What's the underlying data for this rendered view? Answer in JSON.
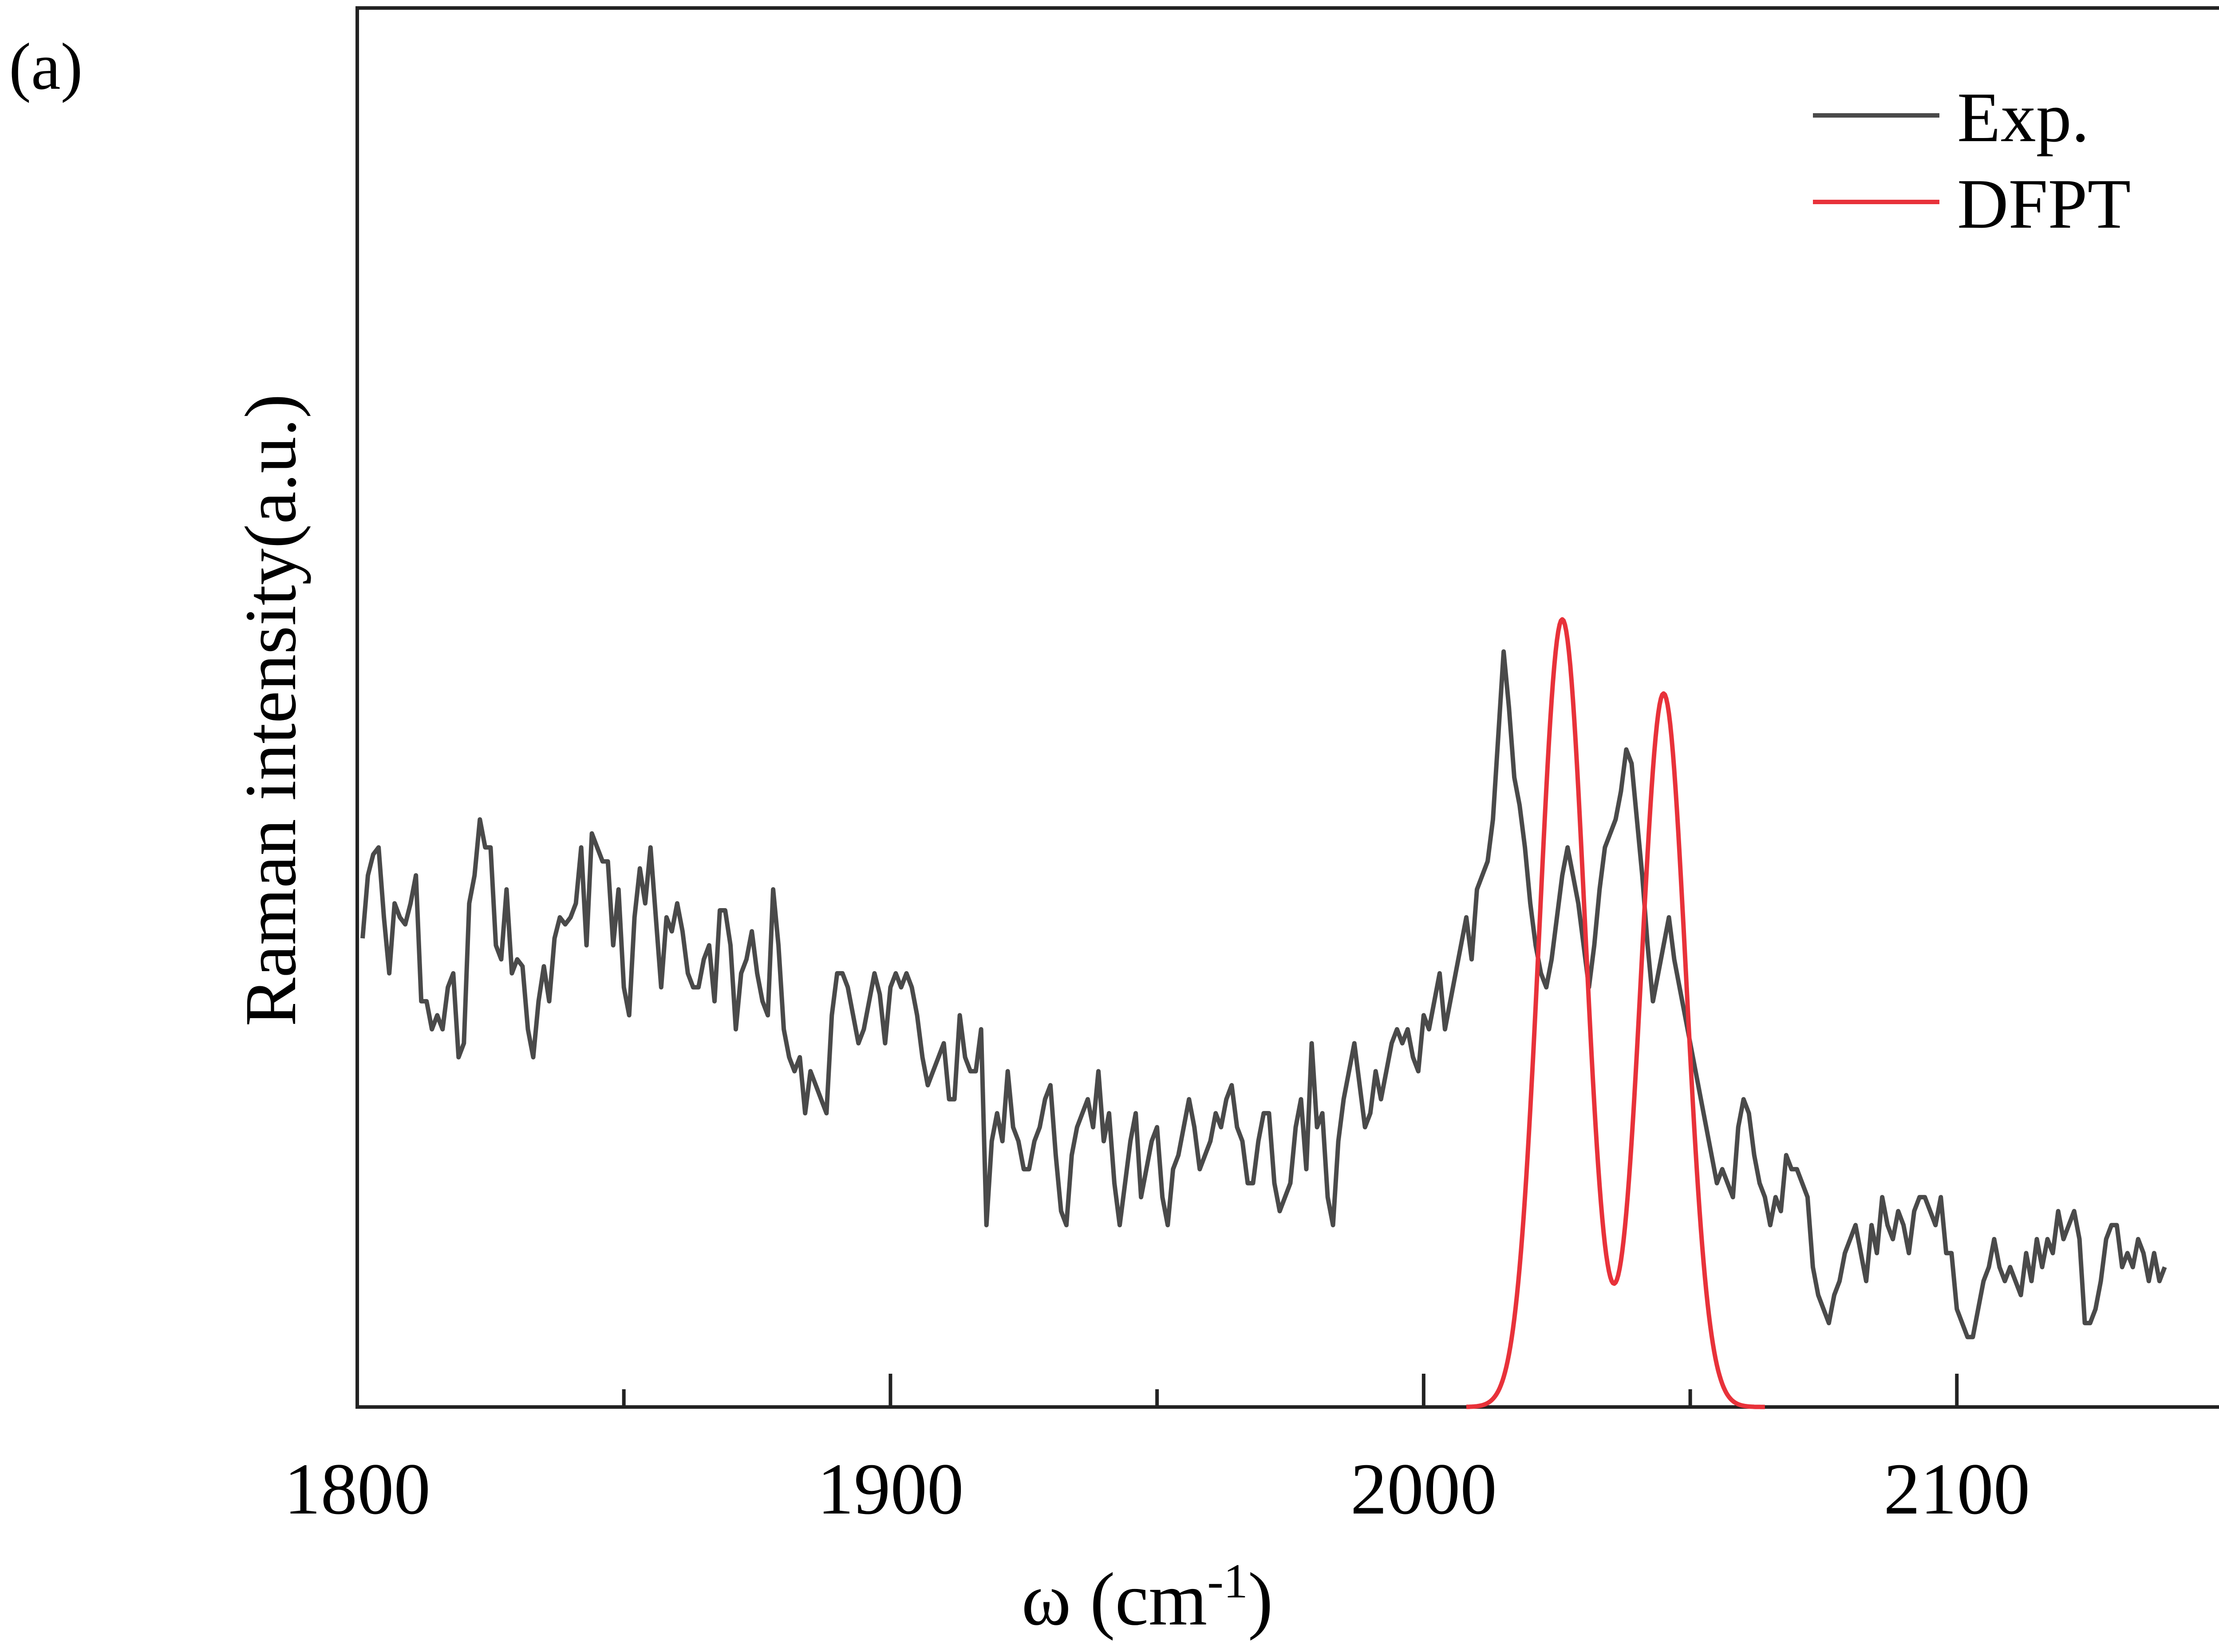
{
  "panel_label": "(a)",
  "chart_data": {
    "type": "line",
    "title": "",
    "xlabel": "ω (cm",
    "xlabel_sup": "-1",
    "xlabel_close": ")",
    "ylabel": "Raman intensity(a.u.)",
    "xlim": [
      1800,
      2150
    ],
    "ylim": [
      0,
      1
    ],
    "x_ticks": [
      1800,
      1900,
      2000,
      2100
    ],
    "x_minor_ticks": [
      1850,
      1950,
      2050
    ],
    "grid": false,
    "legend_position": "top-right",
    "series": [
      {
        "name": "Exp.",
        "color": "#4a4a4a",
        "x": [
          1801,
          1802,
          1803,
          1804,
          1805,
          1806,
          1807,
          1808,
          1809,
          1810,
          1811,
          1812,
          1813,
          1814,
          1815,
          1816,
          1817,
          1818,
          1819,
          1820,
          1821,
          1822,
          1823,
          1824,
          1825,
          1826,
          1827,
          1828,
          1829,
          1830,
          1831,
          1832,
          1833,
          1834,
          1835,
          1836,
          1837,
          1838,
          1839,
          1840,
          1841,
          1842,
          1843,
          1844,
          1845,
          1846,
          1847,
          1848,
          1849,
          1850,
          1851,
          1852,
          1853,
          1854,
          1855,
          1856,
          1857,
          1858,
          1859,
          1860,
          1861,
          1862,
          1863,
          1864,
          1865,
          1866,
          1867,
          1868,
          1869,
          1870,
          1871,
          1872,
          1873,
          1874,
          1875,
          1876,
          1877,
          1878,
          1879,
          1880,
          1881,
          1882,
          1883,
          1884,
          1885,
          1886,
          1887,
          1888,
          1889,
          1890,
          1891,
          1892,
          1893,
          1894,
          1895,
          1896,
          1897,
          1898,
          1899,
          1900,
          1901,
          1902,
          1903,
          1904,
          1905,
          1906,
          1907,
          1908,
          1909,
          1910,
          1911,
          1912,
          1913,
          1914,
          1915,
          1916,
          1917,
          1918,
          1919,
          1920,
          1921,
          1922,
          1923,
          1924,
          1925,
          1926,
          1927,
          1928,
          1929,
          1930,
          1931,
          1932,
          1933,
          1934,
          1935,
          1936,
          1937,
          1938,
          1939,
          1940,
          1941,
          1942,
          1943,
          1944,
          1945,
          1946,
          1947,
          1948,
          1949,
          1950,
          1951,
          1952,
          1953,
          1954,
          1955,
          1956,
          1957,
          1958,
          1959,
          1960,
          1961,
          1962,
          1963,
          1964,
          1965,
          1966,
          1967,
          1968,
          1969,
          1970,
          1971,
          1972,
          1973,
          1974,
          1975,
          1976,
          1977,
          1978,
          1979,
          1980,
          1981,
          1982,
          1983,
          1984,
          1985,
          1986,
          1987,
          1988,
          1989,
          1990,
          1991,
          1992,
          1993,
          1994,
          1995,
          1996,
          1997,
          1998,
          1999,
          2000,
          2001,
          2002,
          2003,
          2004,
          2005,
          2006,
          2007,
          2008,
          2009,
          2010,
          2011,
          2012,
          2013,
          2014,
          2015,
          2016,
          2017,
          2018,
          2019,
          2020,
          2021,
          2022,
          2023,
          2024,
          2025,
          2026,
          2027,
          2028,
          2029,
          2030,
          2031,
          2032,
          2033,
          2034,
          2035,
          2036,
          2037,
          2038,
          2039,
          2040,
          2041,
          2042,
          2043,
          2044,
          2045,
          2046,
          2047,
          2048,
          2049,
          2050,
          2051,
          2052,
          2053,
          2054,
          2055,
          2056,
          2057,
          2058,
          2059,
          2060,
          2061,
          2062,
          2063,
          2064,
          2065,
          2066,
          2067,
          2068,
          2069,
          2070,
          2071,
          2072,
          2073,
          2074,
          2075,
          2076,
          2077,
          2078,
          2079,
          2080,
          2081,
          2082,
          2083,
          2084,
          2085,
          2086,
          2087,
          2088,
          2089,
          2090,
          2091,
          2092,
          2093,
          2094,
          2095,
          2096,
          2097,
          2098,
          2099,
          2100,
          2101,
          2102,
          2103,
          2104,
          2105,
          2106,
          2107,
          2108,
          2109,
          2110,
          2111,
          2112,
          2113,
          2114,
          2115,
          2116,
          2117,
          2118,
          2119,
          2120,
          2121,
          2122,
          2123,
          2124,
          2125,
          2126,
          2127,
          2128,
          2129,
          2130,
          2131,
          2132,
          2133,
          2134,
          2135,
          2136,
          2137,
          2138,
          2139
        ],
        "y": [
          0.335,
          0.38,
          0.395,
          0.4,
          0.35,
          0.31,
          0.36,
          0.35,
          0.345,
          0.36,
          0.38,
          0.29,
          0.29,
          0.27,
          0.28,
          0.27,
          0.3,
          0.31,
          0.25,
          0.26,
          0.36,
          0.38,
          0.42,
          0.4,
          0.4,
          0.33,
          0.32,
          0.37,
          0.31,
          0.32,
          0.315,
          0.27,
          0.25,
          0.29,
          0.315,
          0.29,
          0.335,
          0.35,
          0.345,
          0.35,
          0.36,
          0.4,
          0.33,
          0.41,
          0.4,
          0.39,
          0.39,
          0.33,
          0.37,
          0.3,
          0.28,
          0.35,
          0.385,
          0.36,
          0.4,
          0.35,
          0.3,
          0.35,
          0.34,
          0.36,
          0.34,
          0.31,
          0.3,
          0.3,
          0.32,
          0.33,
          0.29,
          0.355,
          0.355,
          0.33,
          0.27,
          0.31,
          0.32,
          0.34,
          0.31,
          0.29,
          0.28,
          0.37,
          0.33,
          0.27,
          0.25,
          0.24,
          0.25,
          0.21,
          0.24,
          0.23,
          0.22,
          0.21,
          0.28,
          0.31,
          0.31,
          0.3,
          0.28,
          0.26,
          0.27,
          0.29,
          0.31,
          0.295,
          0.26,
          0.3,
          0.31,
          0.3,
          0.31,
          0.3,
          0.28,
          0.25,
          0.23,
          0.24,
          0.25,
          0.26,
          0.22,
          0.22,
          0.28,
          0.25,
          0.24,
          0.24,
          0.27,
          0.13,
          0.19,
          0.21,
          0.19,
          0.24,
          0.2,
          0.19,
          0.17,
          0.17,
          0.19,
          0.2,
          0.22,
          0.23,
          0.18,
          0.14,
          0.13,
          0.18,
          0.2,
          0.21,
          0.22,
          0.2,
          0.24,
          0.19,
          0.21,
          0.16,
          0.13,
          0.16,
          0.19,
          0.21,
          0.15,
          0.17,
          0.19,
          0.2,
          0.15,
          0.13,
          0.17,
          0.18,
          0.2,
          0.22,
          0.2,
          0.17,
          0.18,
          0.19,
          0.21,
          0.2,
          0.22,
          0.23,
          0.2,
          0.19,
          0.16,
          0.16,
          0.19,
          0.21,
          0.21,
          0.16,
          0.14,
          0.15,
          0.16,
          0.2,
          0.22,
          0.17,
          0.26,
          0.2,
          0.21,
          0.15,
          0.13,
          0.19,
          0.22,
          0.24,
          0.26,
          0.23,
          0.2,
          0.21,
          0.24,
          0.22,
          0.24,
          0.26,
          0.27,
          0.26,
          0.27,
          0.25,
          0.24,
          0.28,
          0.27,
          0.29,
          0.31,
          0.27,
          0.29,
          0.31,
          0.33,
          0.35,
          0.32,
          0.37,
          0.38,
          0.39,
          0.42,
          0.48,
          0.54,
          0.5,
          0.45,
          0.43,
          0.4,
          0.36,
          0.33,
          0.31,
          0.3,
          0.32,
          0.35,
          0.38,
          0.4,
          0.38,
          0.36,
          0.33,
          0.3,
          0.33,
          0.37,
          0.4,
          0.41,
          0.42,
          0.44,
          0.47,
          0.46,
          0.42,
          0.38,
          0.33,
          0.29,
          0.31,
          0.33,
          0.35,
          0.32,
          0.3,
          0.28,
          0.26,
          0.24,
          0.22,
          0.2,
          0.18,
          0.16,
          0.17,
          0.16,
          0.15,
          0.2,
          0.22,
          0.21,
          0.18,
          0.16,
          0.15,
          0.13,
          0.15,
          0.14,
          0.18,
          0.17,
          0.17,
          0.16,
          0.15,
          0.1,
          0.08,
          0.07,
          0.06,
          0.08,
          0.09,
          0.11,
          0.12,
          0.13,
          0.11,
          0.09,
          0.13,
          0.11,
          0.15,
          0.13,
          0.12,
          0.14,
          0.13,
          0.11,
          0.14,
          0.15,
          0.15,
          0.14,
          0.13,
          0.15,
          0.11,
          0.11,
          0.07,
          0.06,
          0.05,
          0.05,
          0.07,
          0.09,
          0.1,
          0.12,
          0.1,
          0.09,
          0.1,
          0.09,
          0.08,
          0.11,
          0.09,
          0.12,
          0.1,
          0.12,
          0.11,
          0.14,
          0.12,
          0.13,
          0.14,
          0.12,
          0.06,
          0.06,
          0.07,
          0.09,
          0.12,
          0.13,
          0.13,
          0.1,
          0.11,
          0.1,
          0.12,
          0.11,
          0.09,
          0.11,
          0.09,
          0.1
        ],
        "y_note": ""
      },
      {
        "name": "DFPT",
        "color": "#e8323a",
        "peaks": [
          {
            "center": 2026,
            "height": 0.563,
            "sigma": 4.3
          },
          {
            "center": 2045,
            "height": 0.51,
            "sigma": 4.2
          }
        ]
      }
    ]
  }
}
